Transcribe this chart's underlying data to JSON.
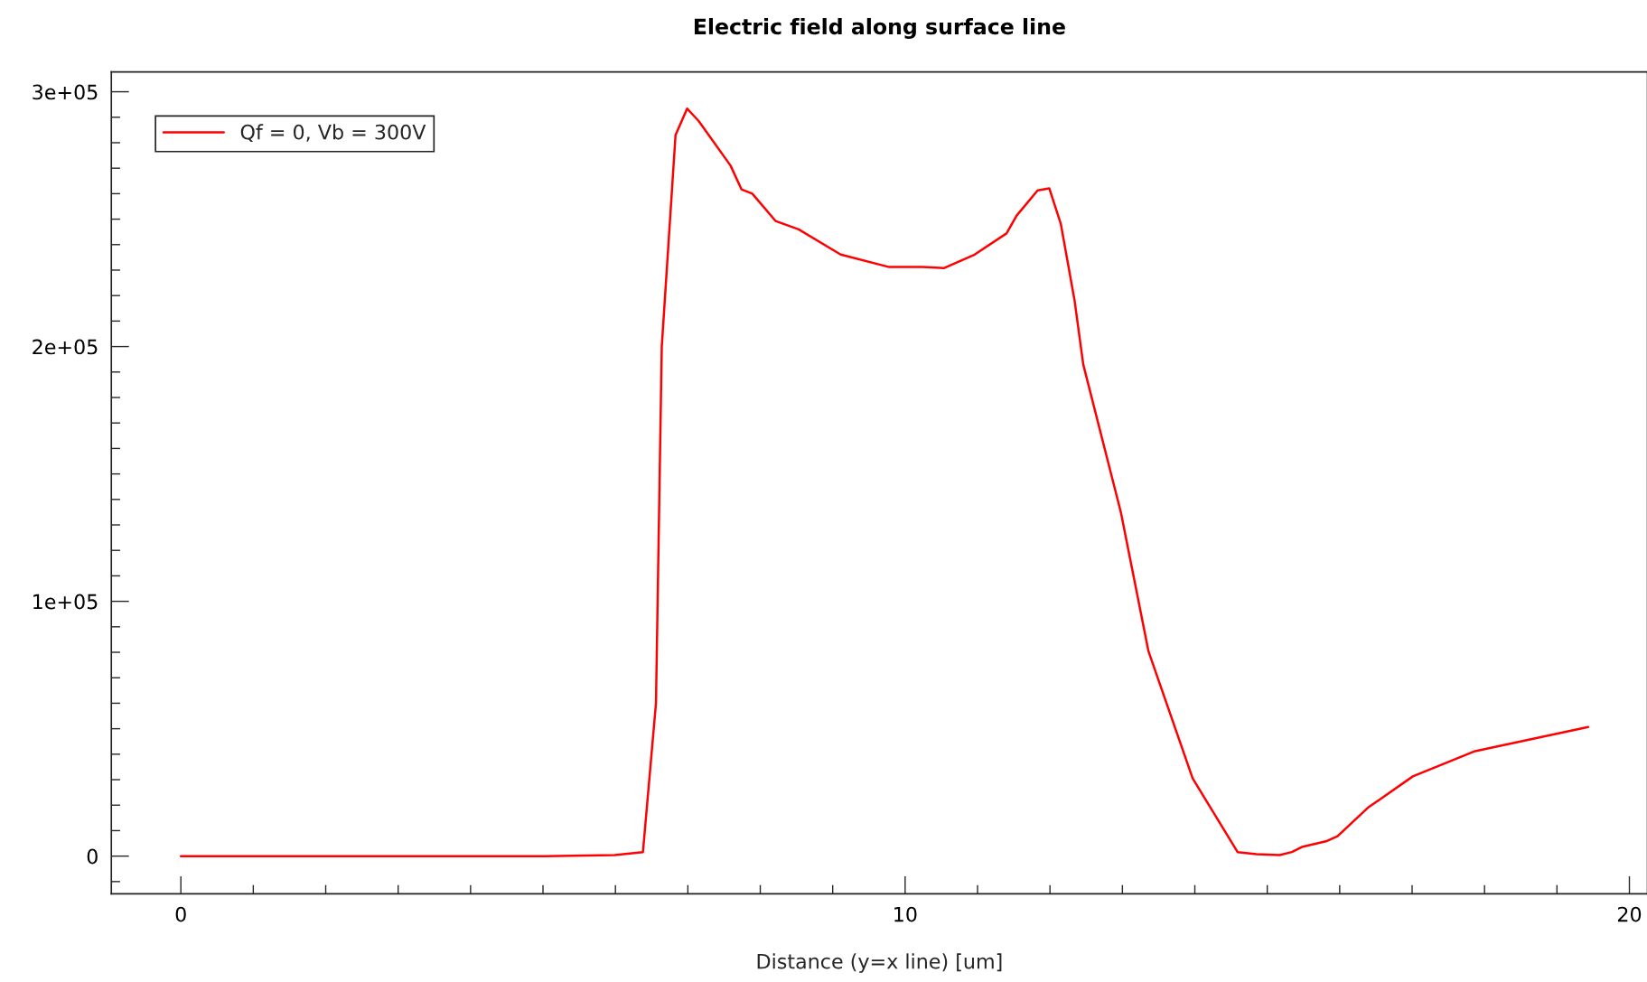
{
  "chart_data": {
    "type": "line",
    "title": "Electric field along surface line",
    "xlabel": "Distance (y=x line) [um]",
    "x": [
      0,
      5.02,
      5.99,
      6.38,
      6.56,
      6.64,
      6.83,
      6.99,
      7.15,
      7.59,
      7.74,
      7.89,
      8.21,
      8.53,
      9.11,
      9.78,
      10.24,
      10.54,
      10.96,
      11.4,
      11.54,
      11.83,
      11.99,
      12.15,
      12.34,
      12.46,
      12.98,
      13.36,
      13.97,
      14.59,
      14.85,
      15.17,
      15.34,
      15.49,
      15.81,
      15.97,
      16.39,
      17.01,
      17.87,
      19.43
    ],
    "series": [
      {
        "name": "Qf = 0, Vb = 300V",
        "color": "#ff0000",
        "values": [
          0,
          0,
          400,
          1600,
          60000,
          200000,
          283000,
          293400,
          288500,
          271000,
          261700,
          260000,
          249300,
          246000,
          236100,
          231200,
          231200,
          230800,
          236100,
          244400,
          251400,
          261300,
          262100,
          248100,
          218000,
          192900,
          134800,
          80400,
          30500,
          1600,
          800,
          400,
          1600,
          3700,
          5800,
          7800,
          19000,
          31300,
          41200,
          50700
        ]
      }
    ],
    "xlim": [
      -0.96,
      20.25
    ],
    "ylim": [
      -14800,
      307800
    ],
    "xticks": [
      0,
      {
        "value": 1,
        "label": null
      },
      {
        "value": 2,
        "label": null
      },
      {
        "value": 3,
        "label": null
      },
      {
        "value": 4,
        "label": null
      },
      {
        "value": 5,
        "label": null
      },
      {
        "value": 6,
        "label": null
      },
      {
        "value": 7,
        "label": null
      },
      {
        "value": 8,
        "label": null
      },
      {
        "value": 9,
        "label": null
      },
      10,
      {
        "value": 11,
        "label": null
      },
      {
        "value": 12,
        "label": null
      },
      {
        "value": 13,
        "label": null
      },
      {
        "value": 14,
        "label": null
      },
      {
        "value": 15,
        "label": null
      },
      {
        "value": 16,
        "label": null
      },
      {
        "value": 17,
        "label": null
      },
      {
        "value": 18,
        "label": null
      },
      {
        "value": 19,
        "label": null
      },
      20
    ],
    "yticks": [
      {
        "value": -10000,
        "label": null
      },
      {
        "value": 0,
        "label": "0"
      },
      {
        "value": 10000,
        "label": null
      },
      {
        "value": 20000,
        "label": null
      },
      {
        "value": 30000,
        "label": null
      },
      {
        "value": 40000,
        "label": null
      },
      {
        "value": 50000,
        "label": null
      },
      {
        "value": 60000,
        "label": null
      },
      {
        "value": 70000,
        "label": null
      },
      {
        "value": 80000,
        "label": null
      },
      {
        "value": 90000,
        "label": null
      },
      {
        "value": 100000,
        "label": "1e+05"
      },
      {
        "value": 110000,
        "label": null
      },
      {
        "value": 120000,
        "label": null
      },
      {
        "value": 130000,
        "label": null
      },
      {
        "value": 140000,
        "label": null
      },
      {
        "value": 150000,
        "label": null
      },
      {
        "value": 160000,
        "label": null
      },
      {
        "value": 170000,
        "label": null
      },
      {
        "value": 180000,
        "label": null
      },
      {
        "value": 190000,
        "label": null
      },
      {
        "value": 200000,
        "label": "2e+05"
      },
      {
        "value": 210000,
        "label": null
      },
      {
        "value": 220000,
        "label": null
      },
      {
        "value": 230000,
        "label": null
      },
      {
        "value": 240000,
        "label": null
      },
      {
        "value": 250000,
        "label": null
      },
      {
        "value": 260000,
        "label": null
      },
      {
        "value": 270000,
        "label": null
      },
      {
        "value": 280000,
        "label": null
      },
      {
        "value": 290000,
        "label": null
      },
      {
        "value": 300000,
        "label": "3e+05"
      }
    ],
    "grid": false,
    "legend": "top left",
    "line_style": "solid",
    "marker": "none"
  }
}
